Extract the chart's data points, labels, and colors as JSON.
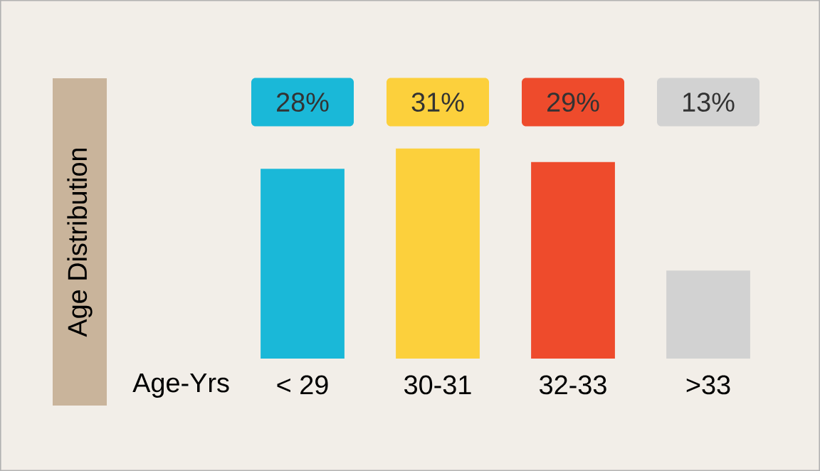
{
  "chart_data": {
    "type": "bar",
    "xlabel": "Age-Yrs",
    "annotations": [
      "Age Distribution"
    ],
    "categories": [
      "< 29",
      "30-31",
      "32-33",
      ">33"
    ],
    "values": [
      28,
      31,
      29,
      13
    ],
    "value_labels": [
      "28%",
      "31%",
      "29%",
      "13%"
    ],
    "colors": [
      "#1ab8d8",
      "#fcd03c",
      "#ee4b2c",
      "#d2d2d2"
    ]
  }
}
